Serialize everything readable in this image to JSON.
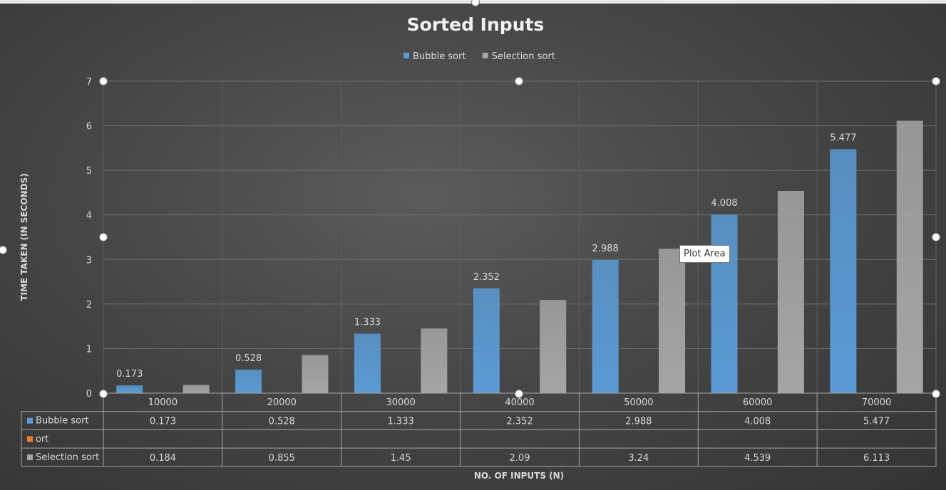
{
  "chart_data": {
    "type": "bar",
    "title": "Sorted Inputs",
    "xlabel": "NO. OF INPUTS (N)",
    "ylabel": "TIME TAKEN (IN SECONDS)",
    "categories": [
      "10000",
      "20000",
      "30000",
      "40000",
      "50000",
      "60000",
      "70000"
    ],
    "series": [
      {
        "name": "Bubble sort",
        "color": "#5b9bd5",
        "values": [
          0.173,
          0.528,
          1.333,
          2.352,
          2.988,
          4.008,
          5.477
        ]
      },
      {
        "name": "ort",
        "color": "#ed7d31",
        "values": [
          null,
          null,
          null,
          null,
          null,
          null,
          null
        ]
      },
      {
        "name": "Selection sort",
        "color": "#a5a5a5",
        "values": [
          0.184,
          0.855,
          1.45,
          2.09,
          3.24,
          4.539,
          6.113
        ]
      }
    ],
    "ylim": [
      0,
      7
    ],
    "yticks": [
      "0",
      "1",
      "2",
      "3",
      "4",
      "5",
      "6",
      "7"
    ],
    "legend_position": "top",
    "grid": true,
    "data_table": true,
    "data_labels_series": [
      "Bubble sort"
    ]
  },
  "tooltip": "Plot Area"
}
